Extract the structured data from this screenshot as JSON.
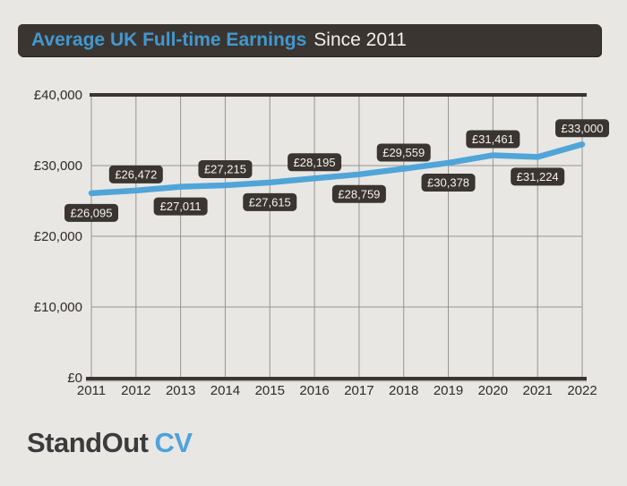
{
  "header": {
    "title_highlight": "Average UK Full-time Earnings",
    "title_rest": "Since 2011"
  },
  "logo": {
    "part1": "StandOut",
    "part2": "CV"
  },
  "colors": {
    "background": "#e9e7e4",
    "panel_dark": "#3a3531",
    "line_blue": "#50a5d8",
    "label_text": "#f5f2ef",
    "grid": "#96948f",
    "axis_text": "#2f2b28",
    "axis_shadow": "#b5b2ae"
  },
  "chart_data": {
    "type": "line",
    "title": "Average UK Full-time Earnings Since 2011",
    "x": [
      2011,
      2012,
      2013,
      2014,
      2015,
      2016,
      2017,
      2018,
      2019,
      2020,
      2021,
      2022
    ],
    "x_tick_labels": [
      "2011",
      "2012",
      "2013",
      "2014",
      "2015",
      "2016",
      "2017",
      "2018",
      "2019",
      "2020",
      "2021",
      "2022"
    ],
    "values": [
      26095,
      26472,
      27011,
      27215,
      27615,
      28195,
      28759,
      29559,
      30378,
      31461,
      31224,
      33000
    ],
    "point_labels": [
      {
        "text": "£26,095",
        "position": "below"
      },
      {
        "text": "£26,472",
        "position": "above"
      },
      {
        "text": "£27,011",
        "position": "below"
      },
      {
        "text": "£27,215",
        "position": "above"
      },
      {
        "text": "£27,615",
        "position": "below"
      },
      {
        "text": "£28,195",
        "position": "above"
      },
      {
        "text": "£28,759",
        "position": "below"
      },
      {
        "text": "£29,559",
        "position": "above"
      },
      {
        "text": "£30,378",
        "position": "below"
      },
      {
        "text": "£31,461",
        "position": "above"
      },
      {
        "text": "£31,224",
        "position": "below"
      },
      {
        "text": "£33,000",
        "position": "above"
      }
    ],
    "xlabel": "",
    "ylabel": "",
    "ylim": [
      0,
      40000
    ],
    "y_ticks": [
      0,
      10000,
      20000,
      30000,
      40000
    ],
    "y_tick_labels": [
      "£0",
      "£10,000",
      "£20,000",
      "£30,000",
      "£40,000"
    ],
    "grid": true,
    "legend": false
  }
}
